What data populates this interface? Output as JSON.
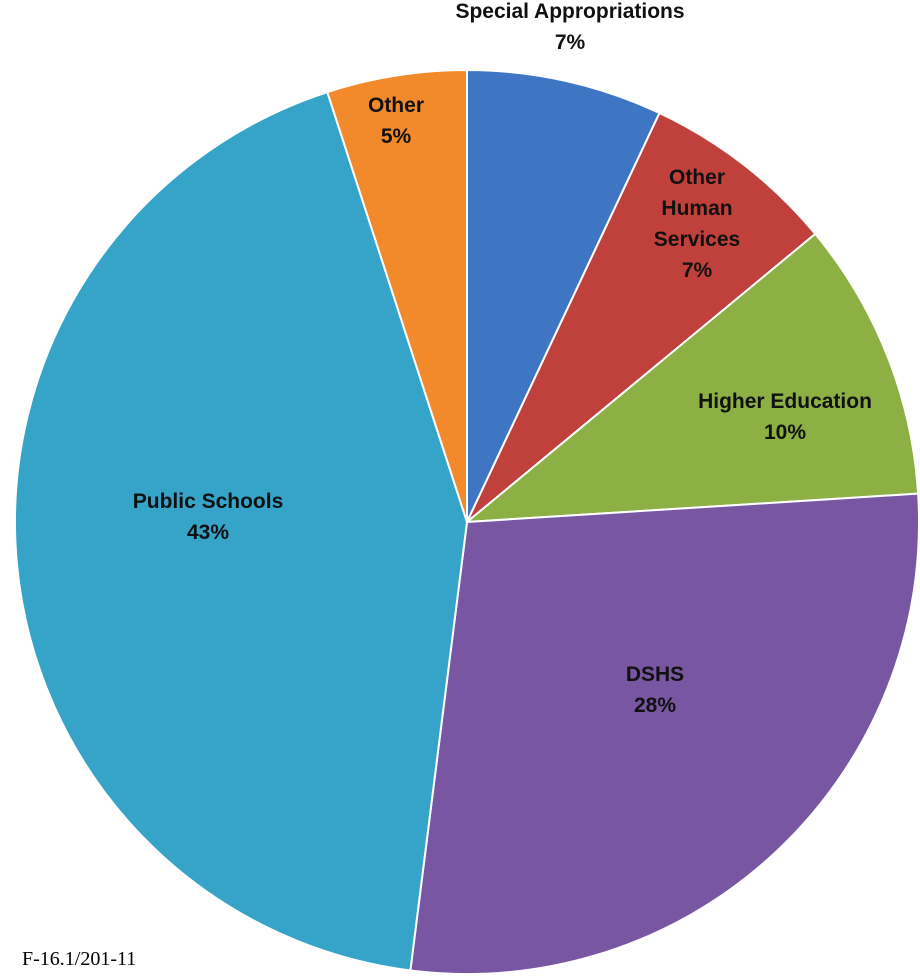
{
  "chart_data": {
    "type": "pie",
    "slices": [
      {
        "label_lines": [
          "Special Appropriations"
        ],
        "percent_text": "7%",
        "value": 7,
        "color": "#3f76c4"
      },
      {
        "label_lines": [
          "Other",
          "Human",
          "Services"
        ],
        "percent_text": "7%",
        "value": 7,
        "color": "#c0403c"
      },
      {
        "label_lines": [
          "Higher Education"
        ],
        "percent_text": "10%",
        "value": 10,
        "color": "#8cb043"
      },
      {
        "label_lines": [
          "DSHS"
        ],
        "percent_text": "28%",
        "value": 28,
        "color": "#7856a2"
      },
      {
        "label_lines": [
          "Public Schools"
        ],
        "percent_text": "43%",
        "value": 43,
        "color": "#35a4c8"
      },
      {
        "label_lines": [
          "Other"
        ],
        "percent_text": "5%",
        "value": 5,
        "color": "#f28a2c"
      }
    ],
    "start_angle_deg": 0,
    "direction": "clockwise"
  },
  "footer_code": "F-16.1/201-11"
}
